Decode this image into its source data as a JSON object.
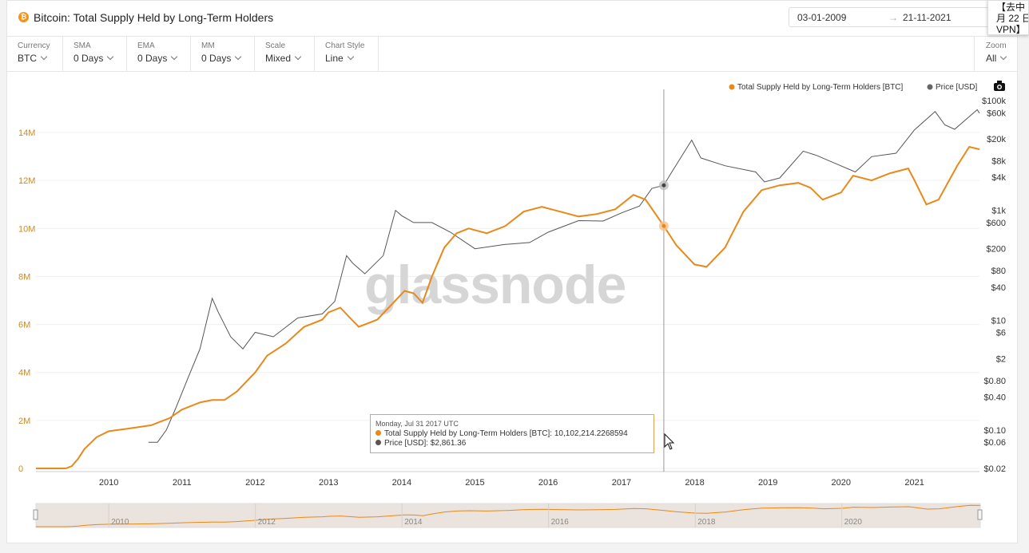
{
  "header": {
    "coin_glyph": "₿",
    "title": "Bitcoin: Total Supply Held by Long-Term Holders",
    "date_from": "03-01-2009",
    "date_arrow": "→",
    "date_to": "21-11-2021"
  },
  "popup": {
    "line1": "【去中",
    "line2": "月 22 日",
    "line3": "VPN】"
  },
  "controls": [
    {
      "label": "Currency",
      "value": "BTC"
    },
    {
      "label": "SMA",
      "value": "0 Days"
    },
    {
      "label": "EMA",
      "value": "0 Days"
    },
    {
      "label": "MM",
      "value": "0 Days"
    },
    {
      "label": "Scale",
      "value": "Mixed"
    },
    {
      "label": "Chart Style",
      "value": "Line"
    }
  ],
  "zoom": {
    "label": "Zoom",
    "value": "All"
  },
  "colors": {
    "lth": "#e8891a",
    "price": "#555555",
    "accent": "#f7931a"
  },
  "watermark": "glassnode",
  "tooltip": {
    "date": "Monday, Jul 31 2017 UTC",
    "lth_label": "Total Supply Held by Long-Term Holders [BTC]:",
    "lth_value": "10,102,214.2268594",
    "price_label": "Price [USD]:",
    "price_value": "$2,861.36"
  },
  "chart_data": {
    "type": "line",
    "legend": [
      "Total Supply Held by Long-Term Holders [BTC]",
      "Price [USD]"
    ],
    "legend_position": "top-right",
    "x_ticks": [
      "2010",
      "2011",
      "2012",
      "2013",
      "2014",
      "2015",
      "2016",
      "2017",
      "2018",
      "2019",
      "2020",
      "2021"
    ],
    "navigator_ticks": [
      "2010",
      "2012",
      "2014",
      "2016",
      "2018",
      "2020"
    ],
    "left_axis": {
      "ticks": [
        "0",
        "2M",
        "4M",
        "6M",
        "8M",
        "10M",
        "12M",
        "14M"
      ],
      "range": [
        0,
        15000000
      ]
    },
    "right_axis": {
      "scale": "log",
      "ticks": [
        "$0.02",
        "$0.06",
        "$0.10",
        "$0.40",
        "$0.80",
        "$2",
        "$6",
        "$10",
        "$40",
        "$80",
        "$200",
        "$600",
        "$1k",
        "$4k",
        "$8k",
        "$20k",
        "$60k",
        "$100k"
      ]
    },
    "series": [
      {
        "name": "Total Supply Held by Long-Term Holders [BTC]",
        "axis": "left",
        "points": [
          [
            "2009-01-03",
            0
          ],
          [
            "2009-06-01",
            0
          ],
          [
            "2009-07-01",
            100000
          ],
          [
            "2009-08-01",
            400000
          ],
          [
            "2009-09-01",
            800000
          ],
          [
            "2009-11-01",
            1300000
          ],
          [
            "2010-01-01",
            1550000
          ],
          [
            "2010-04-01",
            1650000
          ],
          [
            "2010-08-01",
            1800000
          ],
          [
            "2010-11-01",
            2100000
          ],
          [
            "2011-01-01",
            2450000
          ],
          [
            "2011-04-01",
            2750000
          ],
          [
            "2011-06-01",
            2850000
          ],
          [
            "2011-08-01",
            2850000
          ],
          [
            "2011-10-01",
            3200000
          ],
          [
            "2012-01-01",
            4000000
          ],
          [
            "2012-03-01",
            4700000
          ],
          [
            "2012-06-01",
            5200000
          ],
          [
            "2012-09-01",
            5900000
          ],
          [
            "2012-12-01",
            6200000
          ],
          [
            "2013-01-01",
            6500000
          ],
          [
            "2013-03-01",
            6700000
          ],
          [
            "2013-04-15",
            6300000
          ],
          [
            "2013-06-01",
            5900000
          ],
          [
            "2013-09-01",
            6200000
          ],
          [
            "2013-12-01",
            7000000
          ],
          [
            "2014-01-15",
            7400000
          ],
          [
            "2014-03-01",
            7300000
          ],
          [
            "2014-04-15",
            6900000
          ],
          [
            "2014-06-01",
            8000000
          ],
          [
            "2014-08-01",
            9200000
          ],
          [
            "2014-10-01",
            9800000
          ],
          [
            "2014-12-01",
            10000000
          ],
          [
            "2015-03-01",
            9800000
          ],
          [
            "2015-06-01",
            10100000
          ],
          [
            "2015-09-01",
            10700000
          ],
          [
            "2015-12-01",
            10900000
          ],
          [
            "2016-03-01",
            10700000
          ],
          [
            "2016-06-01",
            10500000
          ],
          [
            "2016-09-01",
            10600000
          ],
          [
            "2016-12-01",
            10800000
          ],
          [
            "2017-03-01",
            11400000
          ],
          [
            "2017-05-01",
            11200000
          ],
          [
            "2017-07-31",
            10102214
          ],
          [
            "2017-10-01",
            9300000
          ],
          [
            "2017-12-31",
            8500000
          ],
          [
            "2018-03-01",
            8400000
          ],
          [
            "2018-06-01",
            9200000
          ],
          [
            "2018-09-01",
            10700000
          ],
          [
            "2018-12-01",
            11600000
          ],
          [
            "2019-03-01",
            11800000
          ],
          [
            "2019-06-01",
            11900000
          ],
          [
            "2019-08-01",
            11700000
          ],
          [
            "2019-10-01",
            11200000
          ],
          [
            "2020-01-01",
            11500000
          ],
          [
            "2020-03-01",
            12200000
          ],
          [
            "2020-06-01",
            12000000
          ],
          [
            "2020-09-01",
            12300000
          ],
          [
            "2020-12-01",
            12500000
          ],
          [
            "2021-01-01",
            12000000
          ],
          [
            "2021-03-01",
            11000000
          ],
          [
            "2021-05-01",
            11200000
          ],
          [
            "2021-08-01",
            12600000
          ],
          [
            "2021-10-01",
            13400000
          ],
          [
            "2021-11-21",
            13300000
          ]
        ]
      },
      {
        "name": "Price [USD]",
        "axis": "right",
        "points": [
          [
            "2010-07-18",
            0.06
          ],
          [
            "2010-09-01",
            0.06
          ],
          [
            "2010-10-15",
            0.1
          ],
          [
            "2010-12-01",
            0.25
          ],
          [
            "2011-02-01",
            0.9
          ],
          [
            "2011-04-01",
            3
          ],
          [
            "2011-06-01",
            25
          ],
          [
            "2011-07-01",
            14
          ],
          [
            "2011-09-01",
            5
          ],
          [
            "2011-11-01",
            3
          ],
          [
            "2012-01-01",
            6
          ],
          [
            "2012-04-01",
            5
          ],
          [
            "2012-08-01",
            11
          ],
          [
            "2012-12-01",
            13
          ],
          [
            "2013-02-01",
            22
          ],
          [
            "2013-04-01",
            150
          ],
          [
            "2013-05-01",
            110
          ],
          [
            "2013-07-01",
            70
          ],
          [
            "2013-10-01",
            150
          ],
          [
            "2013-12-01",
            1000
          ],
          [
            "2014-01-01",
            800
          ],
          [
            "2014-03-01",
            600
          ],
          [
            "2014-06-01",
            600
          ],
          [
            "2014-09-01",
            400
          ],
          [
            "2015-01-01",
            200
          ],
          [
            "2015-06-01",
            240
          ],
          [
            "2015-10-01",
            260
          ],
          [
            "2016-01-01",
            400
          ],
          [
            "2016-06-01",
            650
          ],
          [
            "2016-10-01",
            640
          ],
          [
            "2017-01-01",
            900
          ],
          [
            "2017-04-01",
            1200
          ],
          [
            "2017-06-01",
            2500
          ],
          [
            "2017-07-31",
            2861.36
          ],
          [
            "2017-09-01",
            4500
          ],
          [
            "2017-12-17",
            19000
          ],
          [
            "2018-02-01",
            9000
          ],
          [
            "2018-06-01",
            6500
          ],
          [
            "2018-11-01",
            5000
          ],
          [
            "2018-12-15",
            3300
          ],
          [
            "2019-03-01",
            3900
          ],
          [
            "2019-06-26",
            12000
          ],
          [
            "2019-09-01",
            10000
          ],
          [
            "2019-12-01",
            7200
          ],
          [
            "2020-03-12",
            5000
          ],
          [
            "2020-06-01",
            9500
          ],
          [
            "2020-10-01",
            11000
          ],
          [
            "2020-12-31",
            29000
          ],
          [
            "2021-04-14",
            63000
          ],
          [
            "2021-06-01",
            36000
          ],
          [
            "2021-07-20",
            30000
          ],
          [
            "2021-11-10",
            68000
          ],
          [
            "2021-11-21",
            59000
          ]
        ]
      }
    ],
    "crosshair_date": "2017-07-31"
  }
}
